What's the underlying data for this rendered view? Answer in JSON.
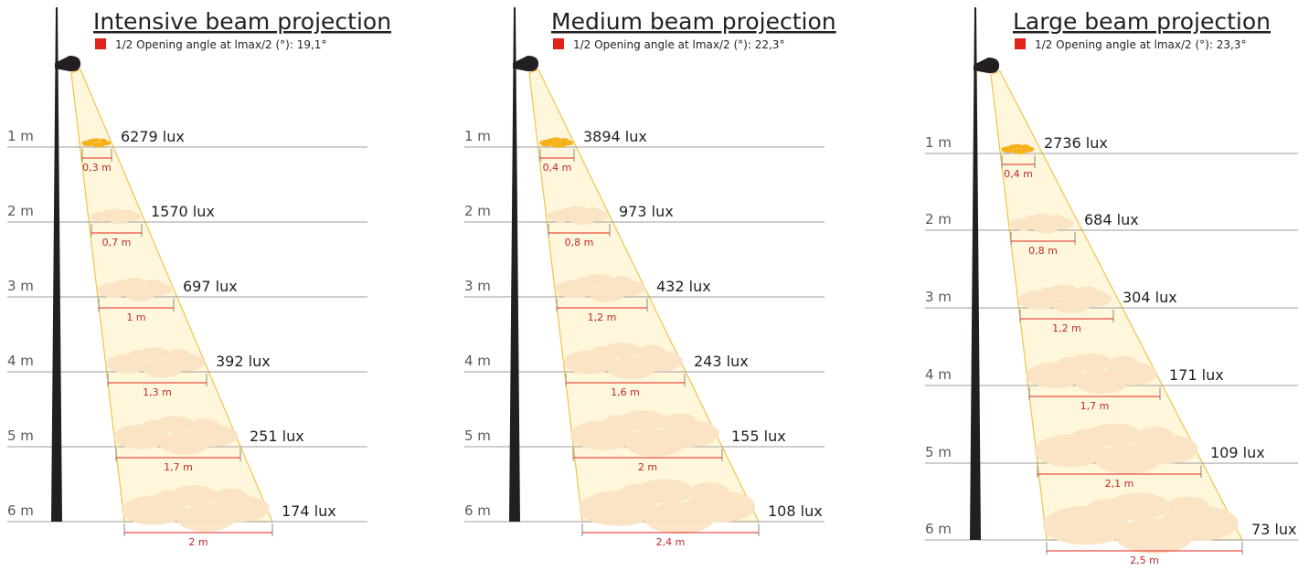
{
  "colors": {
    "accent_red": "#e2231a",
    "beam_fill": "#fff7dc",
    "beam_edge": "#f2c34b",
    "spot": "#fbe3c4",
    "spot_top": "#f6b21b",
    "pole": "#231f20",
    "ground_line": "#9d9d9d",
    "text": "#231f20"
  },
  "legend_label_prefix": "1/2 Opening angle at lmax/2 (°): ",
  "panels": [
    {
      "title": "Intensive beam projection",
      "legend_label": "1/2 Opening angle at lmax/2 (°): 19,1°",
      "levels": [
        {
          "distance": "1 m",
          "lux": "6279 lux",
          "width": "0,3 m"
        },
        {
          "distance": "2 m",
          "lux": "1570 lux",
          "width": "0,7 m"
        },
        {
          "distance": "3 m",
          "lux": "697 lux",
          "width": "1 m"
        },
        {
          "distance": "4 m",
          "lux": "392 lux",
          "width": "1,3 m"
        },
        {
          "distance": "5 m",
          "lux": "251 lux",
          "width": "1,7 m"
        },
        {
          "distance": "6 m",
          "lux": "174 lux",
          "width": "2 m"
        }
      ]
    },
    {
      "title": "Medium beam projection",
      "legend_label": "1/2 Opening angle at lmax/2 (°): 22,3°",
      "levels": [
        {
          "distance": "1 m",
          "lux": "3894 lux",
          "width": "0,4 m"
        },
        {
          "distance": "2 m",
          "lux": "973 lux",
          "width": "0,8 m"
        },
        {
          "distance": "3 m",
          "lux": "432 lux",
          "width": "1,2 m"
        },
        {
          "distance": "4 m",
          "lux": "243 lux",
          "width": "1,6 m"
        },
        {
          "distance": "5 m",
          "lux": "155 lux",
          "width": "2 m"
        },
        {
          "distance": "6 m",
          "lux": "108 lux",
          "width": "2,4 m"
        }
      ]
    },
    {
      "title": "Large beam projection",
      "legend_label": "1/2 Opening angle at lmax/2 (°): 23,3°",
      "levels": [
        {
          "distance": "1 m",
          "lux": "2736 lux",
          "width": "0,4 m"
        },
        {
          "distance": "2 m",
          "lux": "684 lux",
          "width": "0,8 m"
        },
        {
          "distance": "3 m",
          "lux": "304 lux",
          "width": "1,2 m"
        },
        {
          "distance": "4 m",
          "lux": "171 lux",
          "width": "1,7 m"
        },
        {
          "distance": "5 m",
          "lux": "109 lux",
          "width": "2,1 m"
        },
        {
          "distance": "6 m",
          "lux": "73 lux",
          "width": "2,5 m"
        }
      ]
    }
  ]
}
